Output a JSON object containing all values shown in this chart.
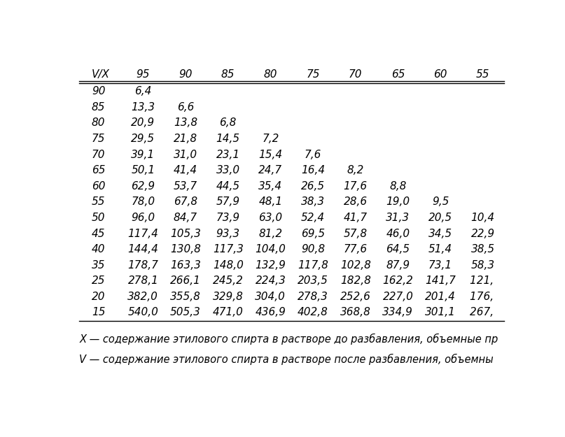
{
  "col_headers": [
    "V/X",
    "95",
    "90",
    "85",
    "80",
    "75",
    "70",
    "65",
    "60",
    "55"
  ],
  "row_headers": [
    "90",
    "85",
    "80",
    "75",
    "70",
    "65",
    "60",
    "55",
    "50",
    "45",
    "40",
    "35",
    "25",
    "20",
    "15"
  ],
  "table_data": [
    [
      "6,4",
      "",
      "",
      "",
      "",
      "",
      "",
      "",
      ""
    ],
    [
      "13,3",
      "6,6",
      "",
      "",
      "",
      "",
      "",
      "",
      ""
    ],
    [
      "20,9",
      "13,8",
      "6,8",
      "",
      "",
      "",
      "",
      "",
      ""
    ],
    [
      "29,5",
      "21,8",
      "14,5",
      "7,2",
      "",
      "",
      "",
      "",
      ""
    ],
    [
      "39,1",
      "31,0",
      "23,1",
      "15,4",
      "7,6",
      "",
      "",
      "",
      ""
    ],
    [
      "50,1",
      "41,4",
      "33,0",
      "24,7",
      "16,4",
      "8,2",
      "",
      "",
      ""
    ],
    [
      "62,9",
      "53,7",
      "44,5",
      "35,4",
      "26,5",
      "17,6",
      "8,8",
      "",
      ""
    ],
    [
      "78,0",
      "67,8",
      "57,9",
      "48,1",
      "38,3",
      "28,6",
      "19,0",
      "9,5",
      ""
    ],
    [
      "96,0",
      "84,7",
      "73,9",
      "63,0",
      "52,4",
      "41,7",
      "31,3",
      "20,5",
      "10,4"
    ],
    [
      "117,4",
      "105,3",
      "93,3",
      "81,2",
      "69,5",
      "57,8",
      "46,0",
      "34,5",
      "22,9"
    ],
    [
      "144,4",
      "130,8",
      "117,3",
      "104,0",
      "90,8",
      "77,6",
      "64,5",
      "51,4",
      "38,5"
    ],
    [
      "178,7",
      "163,3",
      "148,0",
      "132,9",
      "117,8",
      "102,8",
      "87,9",
      "73,1",
      "58,3"
    ],
    [
      "278,1",
      "266,1",
      "245,2",
      "224,3",
      "203,5",
      "182,8",
      "162,2",
      "141,7",
      "121, "
    ],
    [
      "382,0",
      "355,8",
      "329,8",
      "304,0",
      "278,3",
      "252,6",
      "227,0",
      "201,4",
      "176, "
    ],
    [
      "540,0",
      "505,3",
      "471,0",
      "436,9",
      "402,8",
      "368,8",
      "334,9",
      "301,1",
      "267, "
    ]
  ],
  "footnote1": "X — содержание этилового спирта в растворе до разбавления, объемные пр",
  "footnote2": "V — содержание этилового спирта в растворе после разбавления, объемны",
  "bg_color": "#ffffff",
  "text_color": "#000000",
  "font_size": 11,
  "header_font_size": 11
}
